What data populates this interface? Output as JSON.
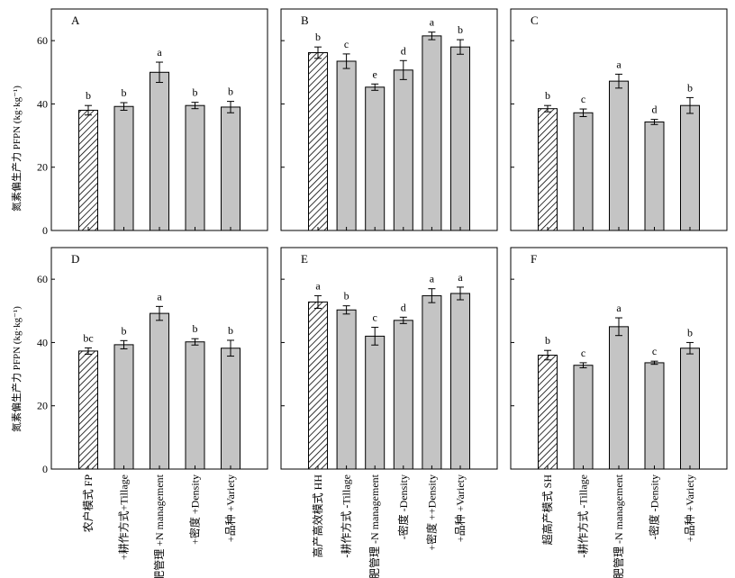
{
  "ylabel": "氮素偏生产力 PFPN (kg·kg⁻¹)",
  "chart_data": [
    {
      "panel": "A",
      "type": "bar",
      "categories": [
        "农户模式 FP",
        "+耕作方式+Tillage",
        "+氮肥管理 +N management",
        "+密度 +Density",
        "+品种 +Variety"
      ],
      "values": [
        38.0,
        39.2,
        50.0,
        39.5,
        39.0
      ],
      "errors": [
        1.5,
        1.2,
        3.2,
        1.0,
        1.8
      ],
      "letters": [
        "b",
        "b",
        "a",
        "b",
        "b"
      ],
      "hatched": [
        true,
        false,
        false,
        false,
        false
      ],
      "ylim": [
        0,
        70
      ],
      "yticks": [
        0,
        20,
        40,
        60
      ]
    },
    {
      "panel": "B",
      "type": "bar",
      "categories": [
        "高产高效模式 HH",
        "-耕作方式 -Tillage",
        "-氮肥管理 -N management",
        "-密度 -Density",
        "+密度 ++Density",
        "+品种 +Variety"
      ],
      "values": [
        56.2,
        53.5,
        45.3,
        50.7,
        61.5,
        58.0
      ],
      "errors": [
        1.8,
        2.3,
        1.0,
        3.0,
        1.2,
        2.3
      ],
      "letters": [
        "b",
        "c",
        "e",
        "d",
        "a",
        "b"
      ],
      "hatched": [
        true,
        false,
        false,
        false,
        false,
        false
      ],
      "ylim": [
        0,
        70
      ],
      "yticks": [
        0,
        20,
        40,
        60
      ]
    },
    {
      "panel": "C",
      "type": "bar",
      "categories": [
        "超高产模式 SH",
        "-耕作方式 -Tillage",
        "-氮肥管理 -N management",
        "-密度 -Density",
        "+品种 +Variety"
      ],
      "values": [
        38.5,
        37.2,
        47.2,
        34.3,
        39.5
      ],
      "errors": [
        1.0,
        1.2,
        2.2,
        0.8,
        2.5
      ],
      "letters": [
        "b",
        "c",
        "a",
        "d",
        "b"
      ],
      "hatched": [
        true,
        false,
        false,
        false,
        false
      ],
      "ylim": [
        0,
        70
      ],
      "yticks": [
        0,
        20,
        40,
        60
      ]
    },
    {
      "panel": "D",
      "type": "bar",
      "categories": [
        "农户模式 FP",
        "+耕作方式+Tillage",
        "+氮肥管理 +N management",
        "+密度 +Density",
        "+品种 +Variety"
      ],
      "values": [
        37.3,
        39.3,
        49.2,
        40.2,
        38.2
      ],
      "errors": [
        1.0,
        1.3,
        2.2,
        1.0,
        2.5
      ],
      "letters": [
        "bc",
        "b",
        "a",
        "b",
        "b"
      ],
      "hatched": [
        true,
        false,
        false,
        false,
        false
      ],
      "ylim": [
        0,
        70
      ],
      "yticks": [
        0,
        20,
        40,
        60
      ]
    },
    {
      "panel": "E",
      "type": "bar",
      "categories": [
        "高产高效模式 HH",
        "-耕作方式 -Tillage",
        "-氮肥管理 -N management",
        "-密度 -Density",
        "+密度 ++Density",
        "+品种 +Variety"
      ],
      "values": [
        52.8,
        50.3,
        42.0,
        47.0,
        54.8,
        55.5
      ],
      "errors": [
        2.0,
        1.3,
        2.8,
        1.0,
        2.2,
        2.0
      ],
      "letters": [
        "a",
        "b",
        "c",
        "d",
        "a",
        "a"
      ],
      "hatched": [
        true,
        false,
        false,
        false,
        false,
        false
      ],
      "ylim": [
        0,
        70
      ],
      "yticks": [
        0,
        20,
        40,
        60
      ]
    },
    {
      "panel": "F",
      "type": "bar",
      "categories": [
        "超高产模式 SH",
        "-耕作方式 -Tillage",
        "-氮肥管理 -N management",
        "-密度 -Density",
        "+品种 +Variety"
      ],
      "values": [
        36.0,
        32.8,
        45.0,
        33.6,
        38.2
      ],
      "errors": [
        1.5,
        0.8,
        2.8,
        0.5,
        1.8
      ],
      "letters": [
        "b",
        "c",
        "a",
        "c",
        "b"
      ],
      "hatched": [
        true,
        false,
        false,
        false,
        false
      ],
      "ylim": [
        0,
        70
      ],
      "yticks": [
        0,
        20,
        40,
        60
      ]
    }
  ]
}
